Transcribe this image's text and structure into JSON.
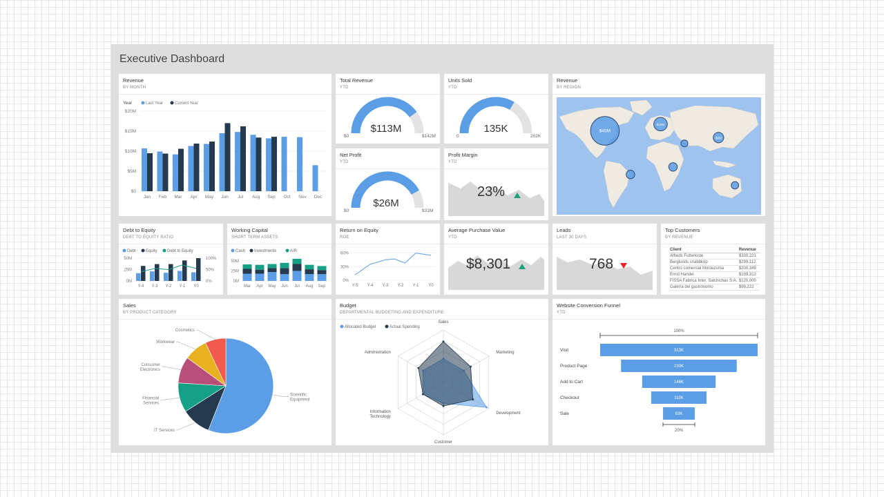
{
  "colors": {
    "blue": "#5b9ee6",
    "navy": "#253a4f",
    "teal": "#16a086",
    "gray_area": "#d8d8d8",
    "gauge_track": "#e3e3e3",
    "up": "#1aa37a",
    "down": "#e8222b",
    "map_water": "#9ec3ef",
    "map_land": "#efeae2"
  },
  "dashboard": {
    "title": "Executive Dashboard"
  },
  "revenue_month": {
    "title": "Revenue",
    "subtitle": "BY MONTH",
    "legend_label": "Year",
    "legend": [
      "Last Year",
      "Current Year"
    ]
  },
  "total_revenue": {
    "title": "Total Revenue",
    "subtitle": "YTD",
    "value": "$113M",
    "min": "$0",
    "max": "$142M",
    "fraction": 0.8
  },
  "units_sold": {
    "title": "Units Sold",
    "subtitle": "YTD",
    "value": "135K",
    "min": "0",
    "max": "202K",
    "fraction": 0.67
  },
  "net_profit": {
    "title": "Net Profit",
    "subtitle": "YTD",
    "value": "$26M",
    "min": "$0",
    "max": "$31M",
    "fraction": 0.84
  },
  "profit_margin": {
    "title": "Profit Margin",
    "subtitle": "YTD",
    "value": "23%",
    "trend": "up"
  },
  "revenue_region": {
    "title": "Revenue",
    "subtitle": "BY REGION",
    "bubbles": [
      {
        "label": "$45M",
        "lon": -95,
        "lat": 40,
        "size": 45
      },
      {
        "label": "$10M",
        "lon": 3,
        "lat": 48,
        "size": 10
      },
      {
        "label": "$6M",
        "lon": 105,
        "lat": 32,
        "size": 6
      },
      {
        "label": "",
        "lon": 25,
        "lat": -3,
        "size": 4
      },
      {
        "label": "",
        "lon": -50,
        "lat": -12,
        "size": 4
      },
      {
        "label": "",
        "lon": 134,
        "lat": -25,
        "size": 3
      },
      {
        "label": "",
        "lon": 45,
        "lat": 25,
        "size": 2
      }
    ]
  },
  "debt_equity": {
    "title": "Debt to Equity",
    "subtitle": "DEBT TO EQUITY RATIO",
    "legend": [
      "Debt",
      "Equity",
      "Debt to Equity"
    ]
  },
  "working_capital": {
    "title": "Working Capital",
    "subtitle": "SHORT TERM ASSETS",
    "legend": [
      "Cash",
      "Investments",
      "A/R"
    ]
  },
  "roe": {
    "title": "Return on Equity",
    "subtitle": "ROE"
  },
  "avg_purchase": {
    "title": "Average Purchase Value",
    "subtitle": "YTD",
    "value": "$8,301",
    "trend": "up"
  },
  "leads": {
    "title": "Leads",
    "subtitle": "LAST 30 DAYS",
    "value": "768",
    "trend": "down"
  },
  "top_customers": {
    "title": "Top Customers",
    "subtitle": "BY REVENUE",
    "headers": [
      "Client",
      "Revenue"
    ],
    "rows": [
      [
        "Alfreds Futterkiste",
        "$330,221"
      ],
      [
        "Berglunds snabbköp",
        "$299,112"
      ],
      [
        "Centro comercial Moctezuma",
        "$200,349"
      ],
      [
        "Ernst Handel",
        "$199,312"
      ],
      [
        "FISSA Fabrica Inter. Salchichas S.A.",
        "$120,000"
      ],
      [
        "Galería del gastrónomo",
        "$99,222"
      ]
    ]
  },
  "sales": {
    "title": "Sales",
    "subtitle": "BY PRODUCT CATEGORY"
  },
  "budget": {
    "title": "Budget",
    "subtitle": "DEPARTMENTAL BUDGETING AND EXPENDITURE",
    "legend": [
      "Allocated Budget",
      "Actual Spending"
    ]
  },
  "funnel": {
    "title": "Website Conversion Funnel",
    "subtitle": "YTD",
    "top_label": "100%",
    "bottom_label": "20%",
    "stages": [
      {
        "name": "Visit",
        "label": "313K",
        "value": 313
      },
      {
        "name": "Product Page",
        "label": "230K",
        "value": 230
      },
      {
        "name": "Add to Cart",
        "label": "146K",
        "value": 146
      },
      {
        "name": "Checkout",
        "label": "110K",
        "value": 110
      },
      {
        "name": "Sale",
        "label": "63K",
        "value": 63
      }
    ]
  },
  "chart_data": [
    {
      "id": "revenue-by-month",
      "type": "bar",
      "categories": [
        "Jan",
        "Feb",
        "Mar",
        "Apr",
        "May",
        "Jun",
        "Jul",
        "Aug",
        "Sep",
        "Oct",
        "Nov",
        "Dec"
      ],
      "series": [
        {
          "name": "Last Year",
          "values": [
            10.7,
            9.9,
            9.2,
            11.3,
            11.8,
            14.5,
            14.8,
            14.1,
            13.2,
            13.6,
            13.5,
            6.5
          ]
        },
        {
          "name": "Current Year",
          "values": [
            9.5,
            9.4,
            10.6,
            11.9,
            12.4,
            17.0,
            16.2,
            13.4,
            13.6,
            null,
            null,
            null
          ]
        }
      ],
      "ylim": [
        0,
        20
      ],
      "yticks": [
        "$0",
        "$5M",
        "$10M",
        "$15M",
        "$20M"
      ]
    },
    {
      "id": "debt-to-equity",
      "type": "bar",
      "categories": [
        "Y-4",
        "Y-3",
        "Y-2",
        "Y-1",
        "Y0"
      ],
      "series": [
        {
          "name": "Debt",
          "values": [
            17,
            21,
            18,
            22,
            19
          ]
        },
        {
          "name": "Equity",
          "values": [
            33,
            37,
            37,
            45,
            50
          ]
        },
        {
          "name": "Debt to Equity",
          "values": [
            40,
            55,
            50,
            70,
            55
          ]
        }
      ],
      "ylim": [
        0,
        50
      ],
      "yticks": [
        "0M",
        "25M",
        "50M"
      ],
      "y2ticks": [
        "0%",
        "50%",
        "100%"
      ]
    },
    {
      "id": "working-capital",
      "type": "bar",
      "categories": [
        "Mar",
        "Apr",
        "May",
        "Jun",
        "Jul",
        "Aug",
        "Sep"
      ],
      "series": [
        {
          "name": "Cash",
          "values": [
            18,
            18,
            22,
            17,
            25,
            17,
            17
          ]
        },
        {
          "name": "Investments",
          "values": [
            12,
            10,
            10,
            15,
            17,
            12,
            10
          ]
        },
        {
          "name": "A/R",
          "values": [
            11,
            12,
            10,
            13,
            13,
            11,
            10
          ]
        }
      ],
      "ylim": [
        0,
        60
      ],
      "yticks": [
        "0M",
        "25M",
        "50M"
      ]
    },
    {
      "id": "return-on-equity",
      "type": "line",
      "categories": [
        "Y-5",
        "Y-4",
        "Y-3",
        "Y-2",
        "Y-1",
        "Y0"
      ],
      "series": [
        {
          "name": "ROE",
          "values": [
            [
              0,
              12
            ],
            [
              1,
              35
            ],
            [
              2,
              45
            ],
            [
              2.6,
              47
            ],
            [
              3.3,
              38
            ],
            [
              4,
              60
            ],
            [
              5,
              55
            ]
          ]
        }
      ],
      "ylim": [
        0,
        70
      ],
      "yticks": [
        "0%",
        "30%",
        "60%"
      ]
    },
    {
      "id": "sales-by-category",
      "type": "pie",
      "slices": [
        {
          "label": "Scientific Equipment",
          "value": 56,
          "color": "#5b9ee6"
        },
        {
          "label": "IT Services",
          "value": 10,
          "color": "#253a4f"
        },
        {
          "label": "Financial Services",
          "value": 10,
          "color": "#16a086"
        },
        {
          "label": "Consumer Electronics",
          "value": 9,
          "color": "#b94e79"
        },
        {
          "label": "Workwear",
          "value": 8,
          "color": "#e8b120"
        },
        {
          "label": "Cosmetics",
          "value": 7,
          "color": "#f25a4e"
        }
      ]
    },
    {
      "id": "budget",
      "type": "radar",
      "axes": [
        "Sales",
        "Marketing",
        "Development",
        "Customer Support",
        "Information Technology",
        "Administration"
      ],
      "series": [
        {
          "name": "Allocated Budget",
          "values": [
            45,
            45,
            95,
            40,
            45,
            45
          ]
        },
        {
          "name": "Actual Spending",
          "values": [
            78,
            60,
            65,
            45,
            45,
            55
          ]
        }
      ],
      "rmax": 100
    }
  ]
}
